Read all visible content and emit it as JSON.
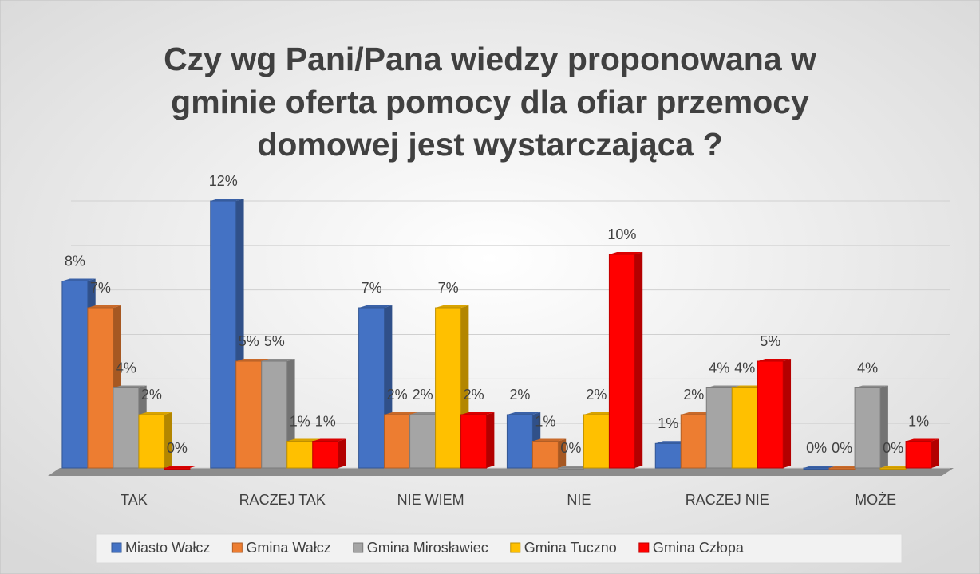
{
  "chart_data": {
    "type": "bar3d",
    "title": [
      "Czy wg Pani/Pana wiedzy proponowana w",
      "gminie oferta pomocy dla ofiar przemocy",
      "domowej jest wystarczająca ?"
    ],
    "categories": [
      "TAK",
      "RACZEJ TAK",
      "NIE WIEM",
      "NIE",
      "RACZEJ NIE",
      "MOŻE"
    ],
    "series": [
      {
        "name": "Miasto Wałcz",
        "color": "#4472c4",
        "values": [
          8.4,
          12,
          7.2,
          2.4,
          1.1,
          0
        ],
        "value_labels": [
          "8%",
          "12%",
          "7%",
          "2%",
          "1%",
          "0%"
        ]
      },
      {
        "name": "Gmina Wałcz",
        "color": "#ed7d31",
        "values": [
          7.2,
          4.8,
          2.4,
          1.2,
          2.4,
          0
        ],
        "value_labels": [
          "7%",
          "5%",
          "2%",
          "1%",
          "2%",
          "0%"
        ]
      },
      {
        "name": "Gmina Mirosławiec",
        "color": "#a5a5a5",
        "values": [
          3.6,
          4.8,
          2.4,
          0,
          3.6,
          3.6
        ],
        "value_labels": [
          "4%",
          "5%",
          "2%",
          "0%",
          "4%",
          "4%"
        ]
      },
      {
        "name": "Gmina Tuczno",
        "color": "#ffc000",
        "values": [
          2.4,
          1.2,
          7.2,
          2.4,
          3.6,
          0
        ],
        "value_labels": [
          "2%",
          "1%",
          "7%",
          "2%",
          "4%",
          "0%"
        ]
      },
      {
        "name": "Gmina Człopa",
        "color": "#ff0000",
        "values": [
          0,
          1.2,
          2.4,
          9.6,
          4.8,
          1.2
        ],
        "value_labels": [
          "0%",
          "1%",
          "2%",
          "10%",
          "5%",
          "1%"
        ]
      }
    ],
    "ylim": [
      0,
      12
    ],
    "yticks": [
      0,
      2,
      4,
      6,
      8,
      10,
      12
    ],
    "grid": true,
    "legend": "bottom"
  }
}
